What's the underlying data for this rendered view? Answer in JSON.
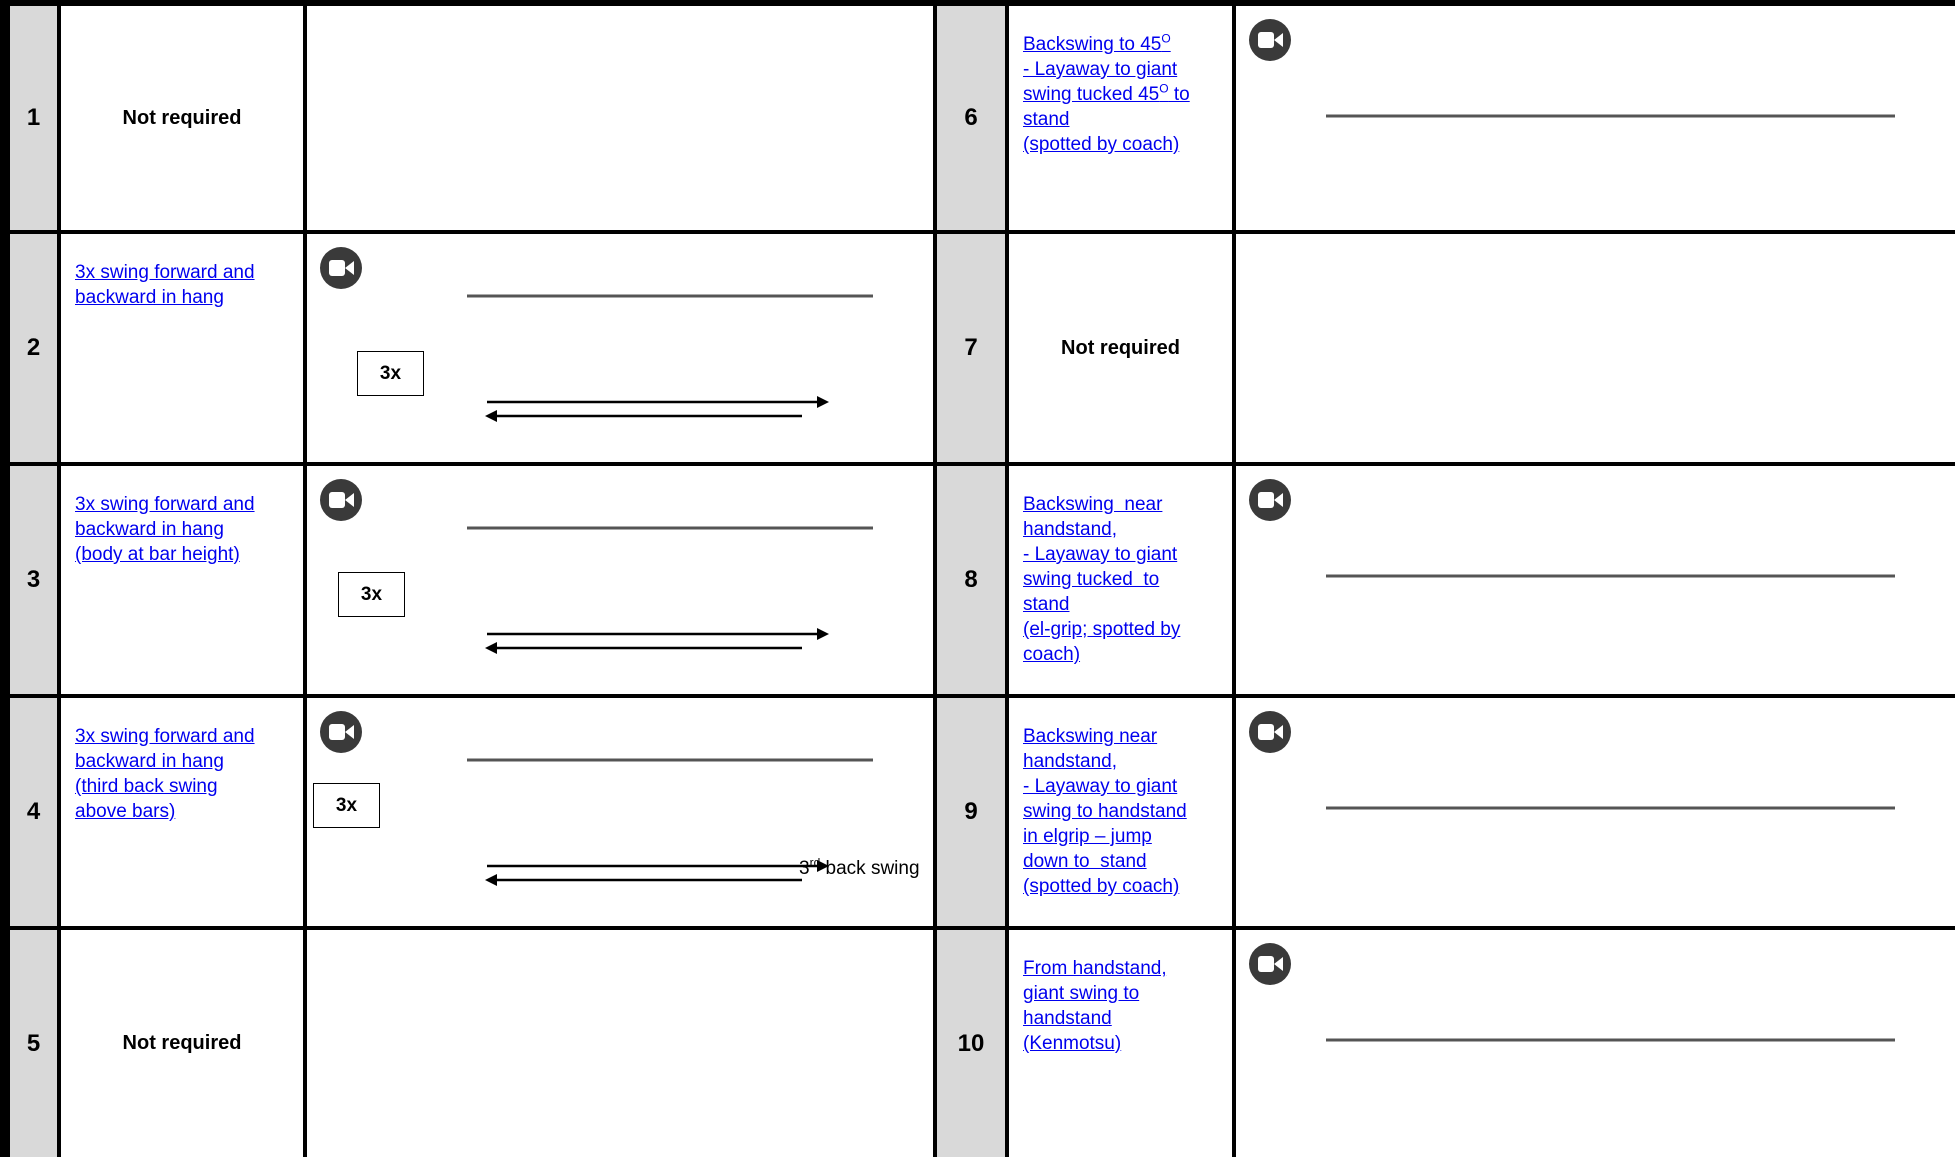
{
  "rows": [
    {
      "left": {
        "number": "1",
        "label": "Not required"
      },
      "right": {
        "number": "6",
        "link": [
          [
            {
              "text": "Backswing to 45"
            },
            {
              "sup": "O"
            }
          ],
          "- Layaway to giant",
          [
            {
              "text": "swing tucked 45"
            },
            {
              "sup": "O"
            },
            {
              "text": " to"
            }
          ],
          "stand",
          "(spotted by coach)"
        ],
        "video": true
      }
    },
    {
      "left": {
        "number": "2",
        "link": [
          "3x swing forward and",
          "backward in hang"
        ],
        "video": true,
        "box": "3x"
      },
      "right": {
        "number": "7",
        "label": "Not required"
      }
    },
    {
      "left": {
        "number": "3",
        "link": [
          "3x swing forward and",
          "backward in hang",
          "(body at bar height)"
        ],
        "video": true,
        "box": "3x"
      },
      "right": {
        "number": "8",
        "link": [
          "Backswing  near",
          "handstand,",
          "- Layaway to giant",
          "swing tucked  to",
          "stand",
          "(el-grip; spotted by",
          "coach)"
        ],
        "video": true
      }
    },
    {
      "left": {
        "number": "4",
        "link": [
          "3x swing forward and",
          "backward in hang",
          "(third back swing",
          "above bars)"
        ],
        "video": true,
        "box": "3x",
        "caption": [
          {
            "text": "3"
          },
          {
            "sup": "rd"
          },
          {
            "text": " back swing"
          }
        ]
      },
      "right": {
        "number": "9",
        "link": [
          "Backswing near",
          "handstand,",
          "- Layaway to giant",
          "swing to handstand",
          "in elgrip – jump",
          "down to  stand",
          "(spotted by coach)"
        ],
        "video": true
      }
    },
    {
      "left": {
        "number": "5",
        "label": "Not required"
      },
      "right": {
        "number": "10",
        "link": [
          "From handstand,",
          "giant swing to",
          "handstand",
          "(Kenmotsu)"
        ],
        "video": true
      }
    }
  ]
}
